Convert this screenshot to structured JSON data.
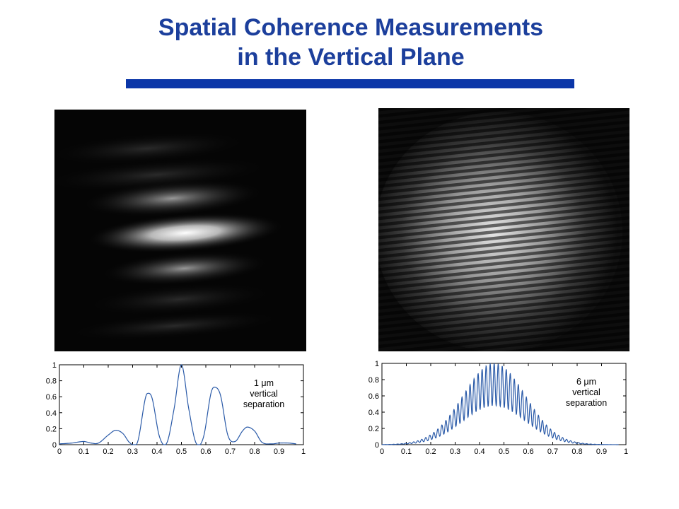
{
  "slide": {
    "title_line1": "Spatial Coherence Measurements",
    "title_line2": "in the Vertical Plane"
  },
  "chart_data": [
    {
      "type": "line",
      "annotation": [
        "1 μm",
        "vertical",
        "separation"
      ],
      "xlim": [
        0,
        1
      ],
      "ylim": [
        0,
        1
      ],
      "xticks": [
        "0",
        "0.1",
        "0.2",
        "0.3",
        "0.4",
        "0.5",
        "0.6",
        "0.7",
        "0.8",
        "0.9",
        "1"
      ],
      "yticks": [
        "0",
        "0.2",
        "0.4",
        "0.6",
        "0.8",
        "1"
      ],
      "series": [
        {
          "color": "#2a5aa8",
          "x": [
            0,
            0.05,
            0.1,
            0.13,
            0.16,
            0.2,
            0.23,
            0.26,
            0.29,
            0.32,
            0.35,
            0.36,
            0.38,
            0.41,
            0.44,
            0.47,
            0.5,
            0.53,
            0.56,
            0.59,
            0.62,
            0.635,
            0.66,
            0.69,
            0.72,
            0.75,
            0.77,
            0.8,
            0.83,
            0.87,
            0.9,
            0.94,
            0.97
          ],
          "y": [
            0.01,
            0.02,
            0.04,
            0.02,
            0.02,
            0.12,
            0.18,
            0.14,
            0.02,
            0.03,
            0.55,
            0.64,
            0.58,
            0.1,
            0.02,
            0.45,
            1.0,
            0.45,
            0.02,
            0.09,
            0.63,
            0.72,
            0.62,
            0.12,
            0.04,
            0.17,
            0.22,
            0.17,
            0.03,
            0.01,
            0.02,
            0.02,
            0.01
          ]
        }
      ]
    },
    {
      "type": "line",
      "annotation": [
        "6 μm",
        "vertical",
        "separation"
      ],
      "xlim": [
        0,
        1
      ],
      "ylim": [
        0,
        1
      ],
      "xticks": [
        "0",
        "0.1",
        "0.2",
        "0.3",
        "0.4",
        "0.5",
        "0.6",
        "0.7",
        "0.8",
        "0.9",
        "1"
      ],
      "yticks": [
        "0",
        "0.2",
        "0.4",
        "0.6",
        "0.8",
        "1"
      ],
      "envelope": {
        "center": 0.46,
        "width": 0.18,
        "fringe_period": 0.0165,
        "visibility": 0.52
      },
      "series": [
        {
          "color": "#2a5aa8",
          "x": [
            0.0,
            0.1,
            0.2,
            0.3,
            0.4,
            0.46,
            0.5,
            0.6,
            0.7,
            0.8,
            0.9,
            0.97
          ],
          "y": [
            0.0,
            0.04,
            0.2,
            0.52,
            0.88,
            1.0,
            0.97,
            0.72,
            0.35,
            0.09,
            0.01,
            0.0
          ]
        }
      ]
    }
  ]
}
